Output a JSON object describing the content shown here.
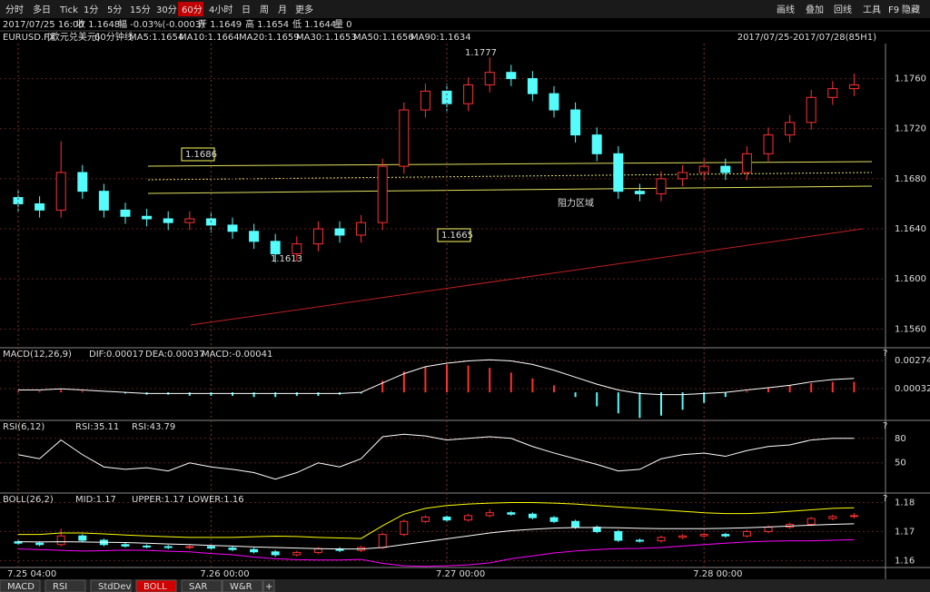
{
  "toolbar": {
    "periods": [
      "分时",
      "多日",
      "Tick",
      "1分",
      "5分",
      "15分",
      "30分",
      "60分",
      "4小时",
      "日",
      "周",
      "月",
      "更多"
    ],
    "active": 7,
    "right": [
      "画线",
      "叠加",
      "回线",
      "工具",
      "F9",
      "隐藏"
    ]
  },
  "info": [
    {
      "text": "2017/07/25 16:00",
      "color": "#ffffff"
    },
    {
      "text": "收 1.1648",
      "color": "#00e000"
    },
    {
      "text": "幅 -0.03%(-0.0003)",
      "color": "#00e000"
    },
    {
      "text": "开 1.1649",
      "color": "#00e000"
    },
    {
      "text": "高 1.1654",
      "color": "#ff4040"
    },
    {
      "text": "低 1.1644",
      "color": "#00e000"
    },
    {
      "text": "量 0",
      "color": "#ffffff"
    }
  ],
  "legend": {
    "symbol": "EURUSD.FX",
    "name": "[欧元兑美元]",
    "period": "60分钟线",
    "ma": [
      {
        "text": "MA5:1.1654",
        "color": "#ffff00"
      },
      {
        "text": "MA10:1.1664",
        "color": "#ffa040"
      },
      {
        "text": "MA20:1.1659",
        "color": "#ff00ff"
      },
      {
        "text": "MA30:1.1653",
        "color": "#00c000"
      },
      {
        "text": "MA50:1.1656",
        "color": "#00e0e0"
      },
      {
        "text": "MA90:1.1634",
        "color": "#ff4040"
      }
    ],
    "range": "2017/07/25-2017/07/28(85H1)"
  },
  "chart_data": [
    {
      "type": "candlestick",
      "up_color": "#ff3030",
      "down_color": "#54fcfc",
      "categories": [
        "7.25 04:00",
        null,
        null,
        null,
        null,
        null,
        null,
        null,
        null,
        "7.26 00:00",
        null,
        null,
        null,
        null,
        null,
        null,
        null,
        null,
        null,
        null,
        "7.27 00:00",
        null,
        null,
        null,
        null,
        null,
        null,
        null,
        null,
        null,
        null,
        null,
        "7.28 00:00",
        null,
        null,
        null,
        null,
        null,
        null,
        null
      ],
      "open": [
        1.1665,
        1.166,
        1.1655,
        1.1685,
        1.167,
        1.1655,
        1.165,
        1.1648,
        1.1645,
        1.1648,
        1.1643,
        1.1638,
        1.163,
        1.162,
        1.1628,
        1.164,
        1.1635,
        1.1645,
        1.169,
        1.1735,
        1.175,
        1.174,
        1.1755,
        1.1765,
        1.176,
        1.1748,
        1.1735,
        1.1715,
        1.17,
        1.167,
        1.1668,
        1.168,
        1.1685,
        1.169,
        1.1685,
        1.17,
        1.1715,
        1.1725,
        1.1745,
        1.1752
      ],
      "high": [
        1.1671,
        1.1666,
        1.171,
        1.1691,
        1.1676,
        1.1661,
        1.1656,
        1.1654,
        1.1654,
        1.1654,
        1.1649,
        1.1644,
        1.1636,
        1.1634,
        1.1646,
        1.1646,
        1.1651,
        1.1696,
        1.1741,
        1.1756,
        1.1756,
        1.1761,
        1.1777,
        1.1771,
        1.1766,
        1.1754,
        1.1741,
        1.1721,
        1.1706,
        1.1676,
        1.1686,
        1.1691,
        1.1696,
        1.1696,
        1.1706,
        1.1721,
        1.1731,
        1.1751,
        1.1758,
        1.1764
      ],
      "low": [
        1.1654,
        1.1649,
        1.1649,
        1.1664,
        1.1649,
        1.1644,
        1.1642,
        1.1639,
        1.1639,
        1.1637,
        1.1632,
        1.1624,
        1.1613,
        1.1614,
        1.1622,
        1.1629,
        1.1629,
        1.1639,
        1.1684,
        1.1729,
        1.1734,
        1.1734,
        1.1749,
        1.1754,
        1.1742,
        1.1729,
        1.1709,
        1.1694,
        1.1664,
        1.1662,
        1.1662,
        1.1674,
        1.1679,
        1.1679,
        1.1679,
        1.1694,
        1.1709,
        1.1719,
        1.1739,
        1.1746
      ],
      "close": [
        1.166,
        1.1655,
        1.1685,
        1.167,
        1.1655,
        1.165,
        1.1648,
        1.1645,
        1.1648,
        1.1643,
        1.1638,
        1.163,
        1.162,
        1.1628,
        1.164,
        1.1635,
        1.1645,
        1.169,
        1.1735,
        1.175,
        1.174,
        1.1755,
        1.1765,
        1.176,
        1.1748,
        1.1735,
        1.1715,
        1.17,
        1.167,
        1.1668,
        1.168,
        1.1685,
        1.169,
        1.1685,
        1.17,
        1.1715,
        1.1725,
        1.1745,
        1.1752,
        1.1755
      ],
      "ylim": [
        1.1545,
        1.1788
      ],
      "yticks": [
        {
          "value": 1.156,
          "label": "1.1560"
        },
        {
          "value": 1.16,
          "label": "1.1600"
        },
        {
          "value": 1.164,
          "label": "1.1640"
        },
        {
          "value": 1.168,
          "label": "1.1680"
        },
        {
          "value": 1.172,
          "label": "1.1720"
        },
        {
          "value": 1.176,
          "label": "1.1760"
        }
      ],
      "annotations": [
        "1.1777",
        "1.1613",
        "1.1686",
        "1.1665",
        "阻力区域"
      ]
    },
    {
      "type": "macd",
      "title": "MACD(12,26,9)",
      "legend": [
        {
          "text": "DIF:0.00017",
          "color": "#ffffff"
        },
        {
          "text": "DEA:0.00037",
          "color": "#ffff00"
        },
        {
          "text": "MACD:-0.00041",
          "color": "#ff00ff"
        }
      ],
      "help": "?",
      "ylim": [
        -0.00241,
        0.00383
      ],
      "yticks": [
        0.00032,
        0.00274
      ],
      "series": [
        {
          "color": "#ff3030",
          "values": [
            0.0001,
            0.0001,
            0.0002,
            0.0001,
            0,
            -0.0001,
            -0.0002,
            -0.0002,
            -0.0003,
            -0.0003,
            -0.0003,
            -0.0004,
            -0.0004,
            -0.0003,
            -0.0003,
            -0.0002,
            -0.0001,
            0.001,
            0.0018,
            0.0022,
            0.0024,
            0.0023,
            0.0021,
            0.0017,
            0.0012,
            0.0006,
            -0.0004,
            -0.0012,
            -0.0018,
            -0.0022,
            -0.002,
            -0.0015,
            -0.0009,
            -0.0004,
            0.0001,
            0.0004,
            0.0006,
            0.0008,
            0.0009,
            0.0009
          ]
        },
        {
          "color": "#ffffff",
          "values": [
            0.0002,
            0.0002,
            0.0003,
            0.0002,
            0.0001,
            0,
            -0.0001,
            -0.0001,
            -0.0001,
            -0.0001,
            -0.0001,
            -0.0001,
            -0.0001,
            -0.0001,
            -0.0001,
            -0.0001,
            0,
            0.0008,
            0.0016,
            0.0022,
            0.0025,
            0.0027,
            0.0028,
            0.0027,
            0.0024,
            0.0019,
            0.0013,
            0.0007,
            0.0002,
            -0.0001,
            -0.0002,
            -0.0002,
            -0.0001,
            0,
            0.0002,
            0.0004,
            0.0006,
            0.0009,
            0.0011,
            0.0012
          ]
        }
      ]
    },
    {
      "type": "line",
      "title": "RSI(6,12)",
      "legend": [
        {
          "text": "RSI:35.11",
          "color": "#ffffff"
        },
        {
          "text": "RSI:43.79",
          "color": "#ffff00"
        }
      ],
      "help": "?",
      "ylim": [
        13,
        102
      ],
      "yticks": [
        50,
        80
      ],
      "series": [
        {
          "color": "#ffffff",
          "values": [
            60,
            55,
            78,
            60,
            45,
            42,
            44,
            40,
            50,
            45,
            42,
            38,
            30,
            38,
            50,
            45,
            55,
            82,
            85,
            83,
            78,
            80,
            82,
            80,
            70,
            62,
            55,
            48,
            40,
            42,
            55,
            60,
            62,
            58,
            65,
            70,
            72,
            78,
            80,
            80
          ]
        }
      ]
    },
    {
      "type": "boll",
      "title": "BOLL(26,2)",
      "legend": [
        {
          "text": "MID:1.17",
          "color": "#ffffff"
        },
        {
          "text": "UPPER:1.17",
          "color": "#ffff00"
        },
        {
          "text": "LOWER:1.16",
          "color": "#ff00ff"
        }
      ],
      "help": "?",
      "ylim": [
        1.1576,
        1.1833
      ],
      "yticks": [
        1.16,
        1.17,
        1.18
      ],
      "series": [
        {
          "color": "#ffff00",
          "values": [
            1.169,
            1.169,
            1.1695,
            1.1695,
            1.1692,
            1.1688,
            1.1685,
            1.1682,
            1.168,
            1.168,
            1.168,
            1.1682,
            1.1684,
            1.1683,
            1.168,
            1.1678,
            1.1676,
            1.172,
            1.176,
            1.178,
            1.179,
            1.1795,
            1.1798,
            1.18,
            1.18,
            1.1798,
            1.1795,
            1.179,
            1.1785,
            1.178,
            1.1775,
            1.177,
            1.1765,
            1.1762,
            1.1762,
            1.1765,
            1.177,
            1.1775,
            1.178,
            1.1782
          ]
        },
        {
          "color": "#ffffff",
          "values": [
            1.1665,
            1.1664,
            1.1665,
            1.1664,
            1.1663,
            1.1662,
            1.166,
            1.1657,
            1.1655,
            1.1652,
            1.165,
            1.1647,
            1.1645,
            1.1643,
            1.1641,
            1.164,
            1.164,
            1.1645,
            1.1655,
            1.1665,
            1.1675,
            1.1685,
            1.1695,
            1.1703,
            1.1708,
            1.1712,
            1.1714,
            1.1714,
            1.1713,
            1.1711,
            1.171,
            1.171,
            1.171,
            1.1711,
            1.1713,
            1.1716,
            1.1719,
            1.1722,
            1.1725,
            1.1727
          ]
        },
        {
          "color": "#ff00ff",
          "values": [
            1.164,
            1.1638,
            1.1635,
            1.1633,
            1.1634,
            1.1636,
            1.1635,
            1.1632,
            1.163,
            1.1624,
            1.162,
            1.1612,
            1.1606,
            1.1603,
            1.1602,
            1.1602,
            1.1604,
            1.159,
            1.1582,
            1.158,
            1.1582,
            1.1585,
            1.1592,
            1.1606,
            1.1616,
            1.1626,
            1.1633,
            1.1638,
            1.1641,
            1.1642,
            1.1645,
            1.165,
            1.1655,
            1.166,
            1.1664,
            1.1667,
            1.1668,
            1.1668,
            1.167,
            1.1672
          ]
        }
      ]
    }
  ],
  "tabs": {
    "items": [
      "MACD",
      "RSI",
      "StdDev",
      "BOLL",
      "SAR",
      "W&R",
      "+"
    ],
    "active": 3
  }
}
